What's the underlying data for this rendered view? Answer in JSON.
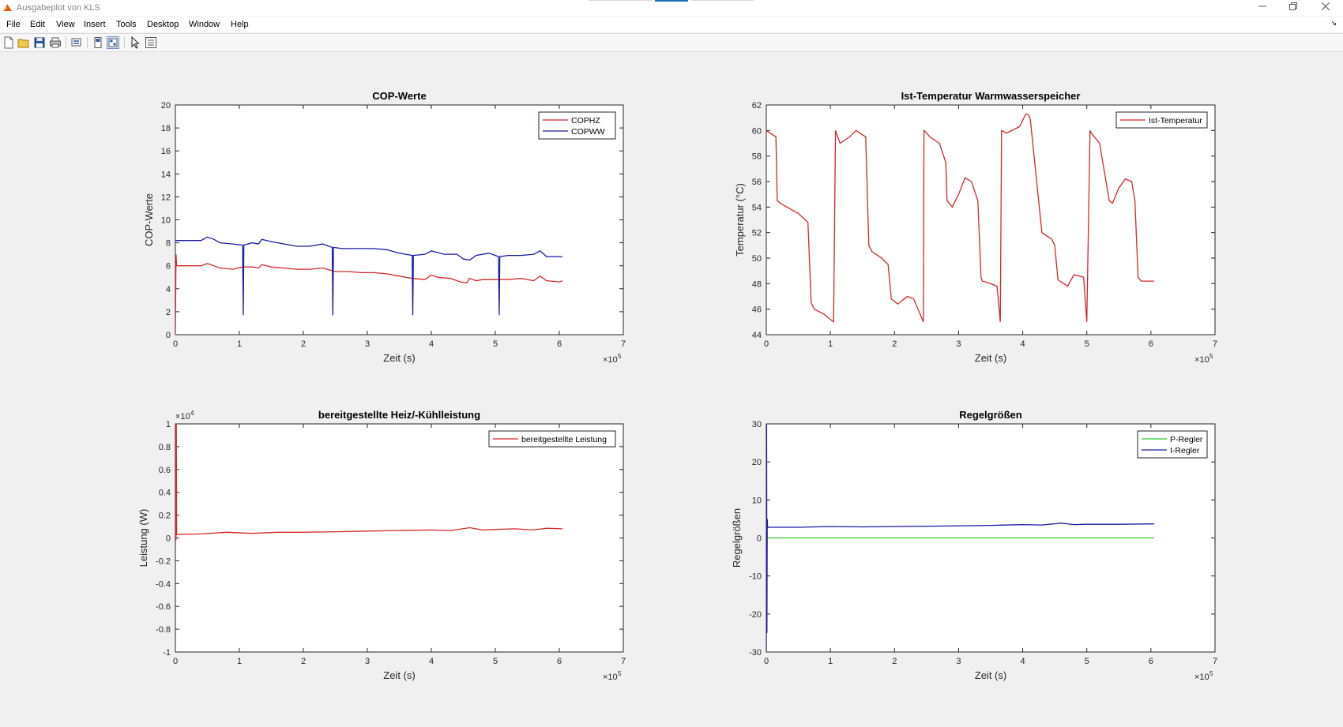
{
  "window": {
    "title": "Ausgabeplot von KLS",
    "controls": [
      "minimize",
      "restore",
      "close"
    ]
  },
  "menu": [
    {
      "key": "file",
      "label": "File"
    },
    {
      "key": "edit",
      "label": "Edit"
    },
    {
      "key": "view",
      "label": "View"
    },
    {
      "key": "insert",
      "label": "Insert"
    },
    {
      "key": "tools",
      "label": "Tools"
    },
    {
      "key": "desktop",
      "label": "Desktop"
    },
    {
      "key": "window",
      "label": "Window"
    },
    {
      "key": "help",
      "label": "Help"
    }
  ],
  "toolbar": [
    "new-figure-icon",
    "open-file-icon",
    "save-icon",
    "print-icon",
    "link-plot-icon",
    "hide-plot-tools-icon",
    "show-plot-tools-icon",
    "edit-plot-arrow-icon",
    "property-inspector-icon"
  ],
  "colors": {
    "red": "#d62728",
    "blue": "#1a1aa6",
    "green": "#33cc33",
    "axis": "#262626"
  },
  "chart_data": [
    {
      "type": "line",
      "title": "COP-Werte",
      "xlabel": "Zeit (s)",
      "ylabel": "COP-Werte",
      "x_multiplier": "×10",
      "x_multiplier_exp": "5",
      "xlim": [
        0,
        7
      ],
      "ylim": [
        0,
        20
      ],
      "xticks": [
        0,
        1,
        2,
        3,
        4,
        5,
        6,
        7
      ],
      "yticks": [
        0,
        2,
        4,
        6,
        8,
        10,
        12,
        14,
        16,
        18,
        20
      ],
      "legend_position": "top-right",
      "series": [
        {
          "name": "COPHZ",
          "color": "#d62728",
          "x": [
            0,
            0.01,
            0.02,
            0.2,
            0.4,
            0.5,
            0.7,
            0.9,
            1.05,
            1.2,
            1.3,
            1.35,
            1.5,
            1.7,
            1.9,
            2.1,
            2.3,
            2.5,
            2.7,
            2.9,
            3.1,
            3.3,
            3.5,
            3.7,
            3.9,
            4.0,
            4.1,
            4.3,
            4.45,
            4.55,
            4.6,
            4.7,
            4.8,
            5.0,
            5.2,
            5.4,
            5.6,
            5.7,
            5.8,
            6.0,
            6.05
          ],
          "y": [
            0,
            7,
            6,
            6,
            6,
            6.2,
            5.8,
            5.7,
            5.9,
            5.9,
            5.8,
            6.1,
            5.9,
            5.8,
            5.7,
            5.7,
            5.8,
            5.5,
            5.5,
            5.4,
            5.4,
            5.3,
            5.1,
            4.9,
            4.8,
            5.2,
            5.0,
            4.9,
            4.6,
            4.5,
            4.9,
            4.7,
            4.8,
            4.8,
            4.8,
            4.9,
            4.7,
            5.1,
            4.7,
            4.6,
            4.7
          ]
        },
        {
          "name": "COPWW",
          "color": "#1a1aa6",
          "x": [
            0,
            0.2,
            0.4,
            0.5,
            0.6,
            0.7,
            0.9,
            1.05,
            1.06,
            1.07,
            1.2,
            1.3,
            1.35,
            1.5,
            1.7,
            1.9,
            2.1,
            2.3,
            2.45,
            2.46,
            2.47,
            2.6,
            2.9,
            3.1,
            3.3,
            3.5,
            3.6,
            3.7,
            3.71,
            3.72,
            3.9,
            4.0,
            4.2,
            4.4,
            4.5,
            4.6,
            4.7,
            4.9,
            5.05,
            5.06,
            5.07,
            5.2,
            5.4,
            5.6,
            5.7,
            5.8,
            6.0,
            6.05
          ],
          "y": [
            8.2,
            8.2,
            8.2,
            8.5,
            8.3,
            8.0,
            7.9,
            7.8,
            1.7,
            7.8,
            8.0,
            7.9,
            8.3,
            8.1,
            7.9,
            7.7,
            7.7,
            7.9,
            7.6,
            1.7,
            7.6,
            7.5,
            7.5,
            7.5,
            7.4,
            7.1,
            7.0,
            6.9,
            1.7,
            6.9,
            7.0,
            7.3,
            7.0,
            7.0,
            6.6,
            6.5,
            6.9,
            7.1,
            6.8,
            1.7,
            6.8,
            6.9,
            6.9,
            7.0,
            7.3,
            6.8,
            6.8,
            6.8
          ]
        }
      ]
    },
    {
      "type": "line",
      "title": "Ist-Temperatur Warmwasserspeicher",
      "xlabel": "Zeit (s)",
      "ylabel": "Temperatur (°C)",
      "x_multiplier": "×10",
      "x_multiplier_exp": "5",
      "xlim": [
        0,
        7
      ],
      "ylim": [
        44,
        62
      ],
      "xticks": [
        0,
        1,
        2,
        3,
        4,
        5,
        6,
        7
      ],
      "yticks": [
        44,
        46,
        48,
        50,
        52,
        54,
        56,
        58,
        60,
        62
      ],
      "legend_position": "top-right",
      "series": [
        {
          "name": "Ist-Temperatur",
          "color": "#d62728",
          "x": [
            0,
            0.15,
            0.17,
            0.25,
            0.5,
            0.65,
            0.7,
            0.75,
            0.9,
            1.0,
            1.05,
            1.08,
            1.15,
            1.3,
            1.4,
            1.55,
            1.6,
            1.65,
            1.8,
            1.9,
            1.95,
            2.05,
            2.2,
            2.3,
            2.45,
            2.46,
            2.5,
            2.55,
            2.7,
            2.8,
            2.82,
            2.9,
            3.0,
            3.1,
            3.2,
            3.3,
            3.35,
            3.37,
            3.5,
            3.6,
            3.65,
            3.67,
            3.75,
            3.95,
            4.05,
            4.1,
            4.12,
            4.3,
            4.45,
            4.5,
            4.55,
            4.7,
            4.8,
            4.95,
            5.0,
            5.05,
            5.07,
            5.2,
            5.35,
            5.4,
            5.5,
            5.6,
            5.7,
            5.75,
            5.8,
            5.85,
            5.9,
            6.05
          ],
          "y": [
            60,
            59.5,
            54.5,
            54.2,
            53.5,
            52.8,
            46.5,
            46,
            45.6,
            45.2,
            45,
            60,
            59,
            59.5,
            60,
            59.5,
            51,
            50.5,
            50,
            49.5,
            46.8,
            46.4,
            47,
            46.8,
            45,
            60,
            59.8,
            59.5,
            59,
            57.5,
            54.5,
            54,
            55,
            56.3,
            56,
            54.5,
            48.5,
            48.2,
            48,
            47.8,
            45,
            60,
            59.8,
            60.3,
            61.3,
            61.2,
            60.8,
            52,
            51.5,
            51,
            48.3,
            47.8,
            48.7,
            48.5,
            45,
            60,
            59.8,
            59,
            54.5,
            54.3,
            55.5,
            56.2,
            56,
            54.5,
            48.5,
            48.2,
            48.2,
            48.2
          ]
        }
      ]
    },
    {
      "type": "line",
      "title": "bereitgestellte Heiz/-Kühlleistung",
      "xlabel": "Zeit (s)",
      "ylabel": "Leistung (W)",
      "x_multiplier": "×10",
      "x_multiplier_exp": "5",
      "y_multiplier": "×10",
      "y_multiplier_exp": "4",
      "xlim": [
        0,
        7
      ],
      "ylim": [
        -1,
        1
      ],
      "xticks": [
        0,
        1,
        2,
        3,
        4,
        5,
        6,
        7
      ],
      "yticks": [
        -1,
        -0.8,
        -0.6,
        -0.4,
        -0.2,
        0,
        0.2,
        0.4,
        0.6,
        0.8,
        1
      ],
      "legend_position": "top-right",
      "series": [
        {
          "name": "bereitgestellte Leistung",
          "color": "#d62728",
          "x": [
            0,
            0.005,
            0.01,
            0.015,
            0.02,
            0.4,
            0.8,
            1.2,
            1.6,
            2.0,
            2.5,
            3.0,
            3.5,
            4.0,
            4.3,
            4.6,
            4.8,
            5.0,
            5.3,
            5.6,
            5.8,
            6.05
          ],
          "y": [
            0,
            1,
            -0.02,
            1,
            0.03,
            0.035,
            0.05,
            0.04,
            0.05,
            0.05,
            0.055,
            0.06,
            0.065,
            0.07,
            0.065,
            0.09,
            0.07,
            0.075,
            0.08,
            0.07,
            0.085,
            0.08
          ]
        }
      ]
    },
    {
      "type": "line",
      "title": "Regelgrößen",
      "xlabel": "Zeit (s)",
      "ylabel": "Regelgrößen",
      "x_multiplier": "×10",
      "x_multiplier_exp": "5",
      "xlim": [
        0,
        7
      ],
      "ylim": [
        -30,
        30
      ],
      "xticks": [
        0,
        1,
        2,
        3,
        4,
        5,
        6,
        7
      ],
      "yticks": [
        -30,
        -20,
        -10,
        0,
        10,
        20,
        30
      ],
      "legend_position": "top-right",
      "series": [
        {
          "name": "P-Regler",
          "color": "#33cc33",
          "x": [
            0,
            6.05
          ],
          "y": [
            0,
            0
          ]
        },
        {
          "name": "I-Regler",
          "color": "#1a1aa6",
          "x": [
            0,
            0.005,
            0.01,
            0.015,
            0.02,
            0.03,
            0.5,
            1.0,
            1.5,
            2.0,
            2.5,
            3.0,
            3.5,
            4.0,
            4.3,
            4.6,
            4.8,
            5.0,
            5.5,
            6.05
          ],
          "y": [
            -30,
            30,
            -25,
            5,
            3,
            2.8,
            2.8,
            3,
            2.9,
            3,
            3.1,
            3.2,
            3.3,
            3.5,
            3.4,
            3.9,
            3.5,
            3.6,
            3.6,
            3.7
          ]
        }
      ]
    }
  ]
}
